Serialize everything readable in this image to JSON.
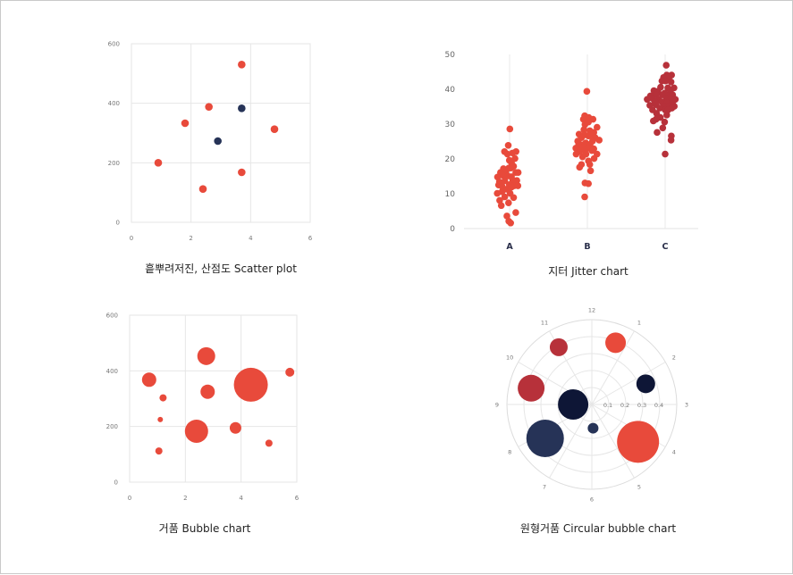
{
  "colors": {
    "red": "#e84a3b",
    "dark_red": "#b7313a",
    "navy": "#263357",
    "dark_navy": "#0e1636",
    "grid": "#e6e6e6",
    "tick": "#777777"
  },
  "captions": {
    "scatter": "흩뿌려저진, 산점도 Scatter plot",
    "jitter": "지터 Jitter chart",
    "bubble": "거품 Bubble chart",
    "circular": "원형거품 Circular bubble chart"
  },
  "chart_data": [
    {
      "type": "scatter",
      "id": "scatter",
      "xlim": [
        0,
        6
      ],
      "ylim": [
        0,
        600
      ],
      "xticks": [
        "0",
        "2",
        "4",
        "6"
      ],
      "yticks": [
        "0",
        "200",
        "400",
        "600"
      ],
      "grid": true,
      "points": [
        {
          "x": 0.9,
          "y": 200,
          "group": "red"
        },
        {
          "x": 1.8,
          "y": 333,
          "group": "red"
        },
        {
          "x": 2.6,
          "y": 388,
          "group": "red"
        },
        {
          "x": 2.4,
          "y": 112,
          "group": "red"
        },
        {
          "x": 3.7,
          "y": 530,
          "group": "red"
        },
        {
          "x": 3.7,
          "y": 168,
          "group": "red"
        },
        {
          "x": 4.8,
          "y": 313,
          "group": "red"
        },
        {
          "x": 2.9,
          "y": 273,
          "group": "navy"
        },
        {
          "x": 3.7,
          "y": 383,
          "group": "navy"
        }
      ]
    },
    {
      "type": "scatter",
      "id": "jitter",
      "subtype": "jitter",
      "categories": [
        "A",
        "B",
        "C"
      ],
      "ylim": [
        0,
        50
      ],
      "yticks": [
        "0",
        "10",
        "20",
        "30",
        "40",
        "50"
      ],
      "series": [
        {
          "category": "A",
          "group": "red",
          "points": [
            [
              0.01,
              28.6
            ],
            [
              -0.19,
              22.1
            ],
            [
              -0.05,
              23.9
            ],
            [
              -0.08,
              21.4
            ],
            [
              0.11,
              21.7
            ],
            [
              0.24,
              22.1
            ],
            [
              -0.01,
              19.6
            ],
            [
              0.2,
              20.1
            ],
            [
              0.07,
              18.9
            ],
            [
              -0.23,
              17.2
            ],
            [
              -0.03,
              17.4
            ],
            [
              0.05,
              17.4
            ],
            [
              0.15,
              17.9
            ],
            [
              -0.34,
              16.1
            ],
            [
              -0.14,
              16.2
            ],
            [
              0.23,
              16.1
            ],
            [
              0.32,
              16.1
            ],
            [
              -0.26,
              15.3
            ],
            [
              -0.45,
              14.8
            ],
            [
              -0.07,
              15.1
            ],
            [
              0.07,
              14.9
            ],
            [
              -0.38,
              13.4
            ],
            [
              -0.18,
              13.7
            ],
            [
              0.12,
              13.9
            ],
            [
              0.27,
              13.8
            ],
            [
              -0.41,
              12.5
            ],
            [
              -0.28,
              12.1
            ],
            [
              -0.01,
              12.6
            ],
            [
              0.17,
              12.3
            ],
            [
              -0.11,
              11.3
            ],
            [
              0.07,
              11.9
            ],
            [
              0.31,
              12.3
            ],
            [
              -0.46,
              10.1
            ],
            [
              -0.28,
              10.6
            ],
            [
              0.02,
              10.1
            ],
            [
              -0.18,
              9.1
            ],
            [
              0.15,
              8.9
            ],
            [
              -0.04,
              7.4
            ],
            [
              -0.37,
              8.1
            ],
            [
              -0.31,
              6.6
            ],
            [
              0.23,
              4.6
            ],
            [
              -0.1,
              3.6
            ],
            [
              -0.03,
              2.1
            ],
            [
              0.04,
              1.6
            ]
          ]
        },
        {
          "category": "B",
          "group": "red",
          "points": [
            [
              -0.02,
              39.4
            ],
            [
              -0.1,
              32.4
            ],
            [
              0.05,
              31.9
            ],
            [
              0.21,
              31.4
            ],
            [
              -0.15,
              31.4
            ],
            [
              0.04,
              30.6
            ],
            [
              -0.09,
              29.9
            ],
            [
              0.36,
              29.1
            ],
            [
              -0.13,
              28.4
            ],
            [
              0.09,
              28.1
            ],
            [
              0.24,
              27.6
            ],
            [
              -0.31,
              27.1
            ],
            [
              -0.11,
              26.9
            ],
            [
              0.04,
              26.6
            ],
            [
              0.12,
              26.9
            ],
            [
              -0.22,
              26.1
            ],
            [
              0.29,
              26.1
            ],
            [
              -0.36,
              25.1
            ],
            [
              0.19,
              25.1
            ],
            [
              0.44,
              25.4
            ],
            [
              -0.22,
              24.1
            ],
            [
              -0.06,
              24.6
            ],
            [
              0.06,
              24.1
            ],
            [
              -0.33,
              23.9
            ],
            [
              0.1,
              23.9
            ],
            [
              -0.43,
              23.1
            ],
            [
              -0.16,
              23.4
            ],
            [
              0.02,
              23.1
            ],
            [
              0.24,
              22.9
            ],
            [
              -0.28,
              22.1
            ],
            [
              -0.1,
              22.4
            ],
            [
              0.17,
              22.4
            ],
            [
              -0.42,
              21.4
            ],
            [
              -0.05,
              21.4
            ],
            [
              0.36,
              21.4
            ],
            [
              -0.18,
              20.6
            ],
            [
              0.25,
              20.1
            ],
            [
              0.04,
              19.4
            ],
            [
              -0.22,
              18.4
            ],
            [
              0.09,
              18.4
            ],
            [
              -0.29,
              17.6
            ],
            [
              0.12,
              16.6
            ],
            [
              -0.09,
              13.1
            ],
            [
              0.04,
              12.9
            ],
            [
              -0.1,
              9.1
            ]
          ]
        },
        {
          "category": "C",
          "group": "dark_red",
          "points": [
            [
              0.04,
              46.9
            ],
            [
              0.06,
              44.1
            ],
            [
              0.24,
              44.1
            ],
            [
              -0.06,
              43.4
            ],
            [
              0.15,
              43.6
            ],
            [
              -0.12,
              42.4
            ],
            [
              0.02,
              42.4
            ],
            [
              0.22,
              42.1
            ],
            [
              -0.17,
              40.6
            ],
            [
              0.1,
              40.4
            ],
            [
              0.33,
              40.4
            ],
            [
              -0.42,
              39.6
            ],
            [
              -0.27,
              39.4
            ],
            [
              -0.02,
              38.9
            ],
            [
              0.2,
              39.1
            ],
            [
              -0.55,
              38.1
            ],
            [
              -0.34,
              38.4
            ],
            [
              -0.1,
              38.4
            ],
            [
              0.1,
              38.1
            ],
            [
              0.28,
              38.4
            ],
            [
              -0.67,
              37.1
            ],
            [
              -0.48,
              37.4
            ],
            [
              -0.24,
              37.1
            ],
            [
              0.05,
              37.4
            ],
            [
              0.19,
              37.1
            ],
            [
              0.38,
              37.1
            ],
            [
              -0.38,
              36.4
            ],
            [
              -0.12,
              36.4
            ],
            [
              0.06,
              36.1
            ],
            [
              0.28,
              36.4
            ],
            [
              -0.57,
              35.4
            ],
            [
              -0.34,
              35.6
            ],
            [
              -0.04,
              35.1
            ],
            [
              0.14,
              35.1
            ],
            [
              0.34,
              35.1
            ],
            [
              -0.2,
              34.6
            ],
            [
              0.25,
              34.6
            ],
            [
              -0.47,
              34.1
            ],
            [
              0.0,
              34.1
            ],
            [
              0.11,
              34.1
            ],
            [
              -0.32,
              33.1
            ],
            [
              0.06,
              32.6
            ],
            [
              -0.34,
              31.4
            ],
            [
              -0.18,
              31.9
            ],
            [
              -0.44,
              30.9
            ],
            [
              -0.02,
              30.6
            ],
            [
              -0.09,
              28.9
            ],
            [
              -0.3,
              27.6
            ],
            [
              0.23,
              26.6
            ],
            [
              0.22,
              25.4
            ],
            [
              0.0,
              21.4
            ]
          ]
        }
      ]
    },
    {
      "type": "scatter",
      "subtype": "bubble",
      "id": "bubble",
      "xlim": [
        0,
        6
      ],
      "ylim": [
        0,
        600
      ],
      "xticks": [
        "0",
        "2",
        "4",
        "6"
      ],
      "yticks": [
        "0",
        "200",
        "400",
        "600"
      ],
      "grid": true,
      "bubbles": [
        {
          "x": 0.7,
          "y": 368,
          "r": 8
        },
        {
          "x": 1.2,
          "y": 303,
          "r": 4
        },
        {
          "x": 1.1,
          "y": 225,
          "r": 3
        },
        {
          "x": 1.05,
          "y": 112,
          "r": 4
        },
        {
          "x": 2.4,
          "y": 183,
          "r": 13
        },
        {
          "x": 2.75,
          "y": 453,
          "r": 10
        },
        {
          "x": 2.8,
          "y": 325,
          "r": 8
        },
        {
          "x": 3.8,
          "y": 195,
          "r": 6.5
        },
        {
          "x": 4.35,
          "y": 350,
          "r": 19
        },
        {
          "x": 5.0,
          "y": 140,
          "r": 4
        },
        {
          "x": 5.75,
          "y": 395,
          "r": 5
        }
      ]
    },
    {
      "type": "scatter",
      "subtype": "polar-bubble",
      "id": "circular",
      "angle_labels": [
        "12",
        "1",
        "2",
        "3",
        "4",
        "5",
        "6",
        "7",
        "8",
        "9",
        "10",
        "11"
      ],
      "radial_ticks": [
        "0.1",
        "0.2",
        "0.3",
        "0.4"
      ],
      "rlim": [
        0,
        0.5
      ],
      "bubbles": [
        {
          "angle": 11,
          "r": 0.39,
          "size": 10,
          "group": "dark_red"
        },
        {
          "angle": 0.7,
          "r": 0.39,
          "size": 11.5,
          "group": "red"
        },
        {
          "angle": 2.3,
          "r": 0.34,
          "size": 10.5,
          "group": "dark_navy"
        },
        {
          "angle": 9.5,
          "r": 0.37,
          "size": 15,
          "group": "dark_red"
        },
        {
          "angle": 9.0,
          "r": 0.11,
          "size": 17,
          "group": "dark_navy"
        },
        {
          "angle": 5.9,
          "r": 0.14,
          "size": 6,
          "group": "navy"
        },
        {
          "angle": 7.8,
          "r": 0.34,
          "size": 21,
          "group": "navy"
        },
        {
          "angle": 4.3,
          "r": 0.35,
          "size": 23.5,
          "group": "red"
        }
      ]
    }
  ]
}
